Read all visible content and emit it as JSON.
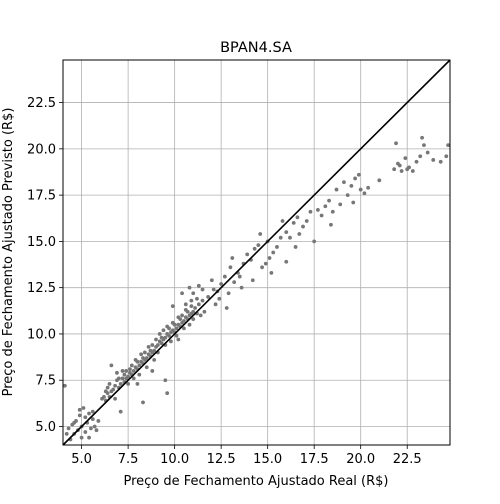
{
  "chart_data": {
    "type": "scatter",
    "title": "BPAN4.SA",
    "xlabel": "Preço de Fechamento Ajustado Real (R$)",
    "ylabel": "Preço de Fechamento Ajustado Previsto (R$)",
    "xlim": [
      4.0,
      24.8
    ],
    "ylim": [
      4.0,
      24.8
    ],
    "xticks": [
      5.0,
      7.5,
      10.0,
      12.5,
      15.0,
      17.5,
      20.0,
      22.5
    ],
    "yticks": [
      5.0,
      7.5,
      10.0,
      12.5,
      15.0,
      17.5,
      20.0,
      22.5
    ],
    "xtick_labels": [
      "5.0",
      "7.5",
      "10.0",
      "12.5",
      "15.0",
      "17.5",
      "20.0",
      "22.5"
    ],
    "ytick_labels": [
      "5.0",
      "7.5",
      "10.0",
      "12.5",
      "15.0",
      "17.5",
      "20.0",
      "22.5"
    ],
    "grid": true,
    "marker_color": "#777777",
    "reference_line": {
      "from": [
        4.0,
        4.0
      ],
      "to": [
        24.8,
        24.8
      ],
      "color": "#000000"
    },
    "points": [
      [
        4.1,
        7.2
      ],
      [
        4.3,
        4.9
      ],
      [
        4.4,
        4.3
      ],
      [
        4.5,
        5.1
      ],
      [
        4.6,
        4.6
      ],
      [
        4.7,
        5.3
      ],
      [
        4.8,
        4.8
      ],
      [
        4.9,
        5.6
      ],
      [
        5.0,
        4.4
      ],
      [
        5.0,
        5.0
      ],
      [
        5.1,
        6.0
      ],
      [
        5.2,
        4.7
      ],
      [
        5.3,
        5.2
      ],
      [
        5.4,
        5.7
      ],
      [
        5.5,
        4.9
      ],
      [
        5.6,
        5.4
      ],
      [
        5.7,
        5.0
      ],
      [
        5.8,
        4.8
      ],
      [
        5.2,
        5.5
      ],
      [
        4.6,
        5.2
      ],
      [
        4.2,
        4.6
      ],
      [
        5.9,
        5.3
      ],
      [
        5.4,
        4.4
      ],
      [
        4.9,
        5.9
      ],
      [
        5.6,
        5.8
      ],
      [
        6.1,
        6.5
      ],
      [
        6.2,
        6.6
      ],
      [
        6.3,
        6.9
      ],
      [
        6.3,
        6.4
      ],
      [
        6.4,
        7.1
      ],
      [
        6.5,
        6.6
      ],
      [
        6.5,
        7.3
      ],
      [
        6.6,
        6.9
      ],
      [
        6.6,
        8.3
      ],
      [
        6.7,
        7.0
      ],
      [
        6.8,
        7.2
      ],
      [
        6.8,
        6.5
      ],
      [
        6.9,
        7.5
      ],
      [
        7.0,
        7.1
      ],
      [
        7.0,
        7.6
      ],
      [
        7.1,
        7.3
      ],
      [
        7.1,
        5.8
      ],
      [
        7.2,
        7.6
      ],
      [
        7.3,
        7.4
      ],
      [
        7.3,
        7.8
      ],
      [
        7.4,
        7.6
      ],
      [
        7.4,
        8.0
      ],
      [
        7.5,
        7.7
      ],
      [
        7.5,
        7.3
      ],
      [
        7.6,
        7.9
      ],
      [
        7.6,
        8.1
      ],
      [
        7.7,
        7.8
      ],
      [
        7.7,
        8.3
      ],
      [
        7.8,
        8.0
      ],
      [
        7.8,
        7.6
      ],
      [
        7.9,
        8.2
      ],
      [
        7.9,
        8.6
      ],
      [
        8.0,
        8.1
      ],
      [
        8.0,
        8.5
      ],
      [
        8.1,
        8.3
      ],
      [
        8.1,
        7.8
      ],
      [
        8.2,
        8.5
      ],
      [
        8.2,
        8.9
      ],
      [
        8.3,
        8.4
      ],
      [
        8.3,
        8.7
      ],
      [
        8.4,
        8.6
      ],
      [
        8.4,
        9.0
      ],
      [
        8.5,
        8.7
      ],
      [
        8.5,
        8.2
      ],
      [
        8.6,
        8.9
      ],
      [
        8.6,
        9.3
      ],
      [
        8.7,
        8.8
      ],
      [
        8.7,
        9.1
      ],
      [
        8.8,
        9.0
      ],
      [
        8.8,
        9.4
      ],
      [
        8.9,
        9.1
      ],
      [
        8.9,
        8.6
      ],
      [
        9.0,
        9.3
      ],
      [
        9.0,
        9.7
      ],
      [
        9.1,
        9.4
      ],
      [
        9.1,
        9.0
      ],
      [
        9.2,
        9.6
      ],
      [
        9.2,
        10.0
      ],
      [
        9.3,
        9.5
      ],
      [
        9.3,
        9.8
      ],
      [
        9.4,
        9.7
      ],
      [
        9.4,
        10.2
      ],
      [
        9.5,
        9.8
      ],
      [
        9.5,
        9.4
      ],
      [
        9.6,
        10.0
      ],
      [
        9.6,
        10.4
      ],
      [
        9.7,
        9.9
      ],
      [
        9.7,
        10.3
      ],
      [
        9.8,
        10.1
      ],
      [
        9.8,
        9.6
      ],
      [
        9.9,
        10.2
      ],
      [
        9.9,
        10.6
      ],
      [
        10.0,
        10.1
      ],
      [
        10.0,
        10.5
      ],
      [
        10.1,
        10.3
      ],
      [
        10.1,
        9.9
      ],
      [
        10.2,
        10.5
      ],
      [
        10.2,
        10.9
      ],
      [
        10.3,
        10.4
      ],
      [
        10.3,
        10.8
      ],
      [
        10.4,
        10.6
      ],
      [
        10.4,
        11.0
      ],
      [
        10.5,
        10.7
      ],
      [
        10.5,
        10.3
      ],
      [
        10.6,
        10.9
      ],
      [
        10.6,
        11.3
      ],
      [
        10.7,
        10.8
      ],
      [
        10.7,
        11.2
      ],
      [
        10.8,
        11.0
      ],
      [
        10.8,
        10.5
      ],
      [
        10.9,
        11.1
      ],
      [
        10.9,
        11.5
      ],
      [
        11.0,
        11.2
      ],
      [
        11.0,
        10.8
      ],
      [
        11.1,
        11.4
      ],
      [
        11.2,
        11.1
      ],
      [
        11.3,
        11.6
      ],
      [
        11.4,
        11.0
      ],
      [
        11.5,
        11.8
      ],
      [
        11.2,
        11.9
      ],
      [
        9.6,
        6.8
      ],
      [
        9.5,
        7.5
      ],
      [
        8.3,
        6.3
      ],
      [
        8.8,
        8.0
      ],
      [
        10.4,
        12.2
      ],
      [
        10.6,
        11.6
      ],
      [
        10.8,
        12.5
      ],
      [
        11.0,
        12.2
      ],
      [
        11.3,
        12.6
      ],
      [
        11.5,
        12.4
      ],
      [
        10.9,
        11.8
      ],
      [
        7.2,
        8.0
      ],
      [
        6.4,
        6.8
      ],
      [
        6.9,
        7.9
      ],
      [
        8.0,
        7.3
      ],
      [
        10.2,
        9.7
      ],
      [
        9.9,
        11.5
      ],
      [
        11.6,
        11.2
      ],
      [
        11.8,
        12.0
      ],
      [
        12.0,
        12.9
      ],
      [
        12.1,
        12.4
      ],
      [
        12.3,
        12.3
      ],
      [
        12.4,
        11.9
      ],
      [
        12.5,
        12.7
      ],
      [
        12.7,
        13.1
      ],
      [
        12.9,
        12.2
      ],
      [
        13.0,
        13.6
      ],
      [
        13.2,
        12.8
      ],
      [
        13.4,
        13.3
      ],
      [
        13.5,
        13.1
      ],
      [
        13.7,
        13.8
      ],
      [
        13.9,
        14.3
      ],
      [
        14.1,
        14.0
      ],
      [
        14.3,
        14.6
      ],
      [
        14.5,
        14.8
      ],
      [
        14.6,
        15.4
      ],
      [
        12.8,
        11.4
      ],
      [
        14.7,
        13.6
      ],
      [
        14.9,
        13.8
      ],
      [
        15.1,
        14.1
      ],
      [
        15.3,
        14.4
      ],
      [
        15.5,
        14.7
      ],
      [
        15.7,
        15.2
      ],
      [
        15.8,
        16.1
      ],
      [
        16.0,
        15.5
      ],
      [
        16.2,
        15.2
      ],
      [
        16.4,
        16.0
      ],
      [
        16.5,
        14.7
      ],
      [
        16.7,
        15.4
      ],
      [
        16.9,
        15.8
      ],
      [
        17.1,
        16.1
      ],
      [
        17.3,
        16.6
      ],
      [
        17.5,
        15.0
      ],
      [
        16.0,
        13.9
      ],
      [
        17.7,
        16.7
      ],
      [
        17.9,
        16.4
      ],
      [
        18.1,
        16.9
      ],
      [
        18.3,
        17.2
      ],
      [
        18.5,
        16.6
      ],
      [
        18.7,
        17.8
      ],
      [
        18.9,
        17.0
      ],
      [
        19.1,
        18.2
      ],
      [
        19.3,
        17.5
      ],
      [
        19.5,
        18.0
      ],
      [
        19.7,
        18.4
      ],
      [
        19.9,
        18.6
      ],
      [
        20.0,
        17.8
      ],
      [
        20.2,
        17.6
      ],
      [
        20.4,
        17.9
      ],
      [
        21.0,
        18.3
      ],
      [
        21.8,
        18.9
      ],
      [
        22.0,
        19.2
      ],
      [
        22.2,
        18.8
      ],
      [
        22.4,
        19.5
      ],
      [
        22.6,
        19.0
      ],
      [
        22.8,
        18.8
      ],
      [
        23.0,
        19.3
      ],
      [
        23.2,
        19.6
      ],
      [
        23.4,
        20.2
      ],
      [
        23.6,
        19.8
      ],
      [
        23.9,
        19.4
      ],
      [
        24.3,
        19.3
      ],
      [
        24.6,
        19.6
      ],
      [
        24.7,
        20.2
      ],
      [
        23.3,
        20.6
      ],
      [
        22.5,
        18.9
      ],
      [
        22.1,
        19.1
      ],
      [
        21.9,
        20.3
      ],
      [
        14.2,
        12.9
      ],
      [
        15.2,
        13.3
      ],
      [
        13.6,
        12.5
      ],
      [
        12.2,
        11.6
      ],
      [
        19.6,
        17.1
      ],
      [
        16.6,
        16.3
      ],
      [
        18.4,
        15.9
      ],
      [
        15.0,
        15.0
      ],
      [
        13.1,
        14.1
      ]
    ]
  }
}
